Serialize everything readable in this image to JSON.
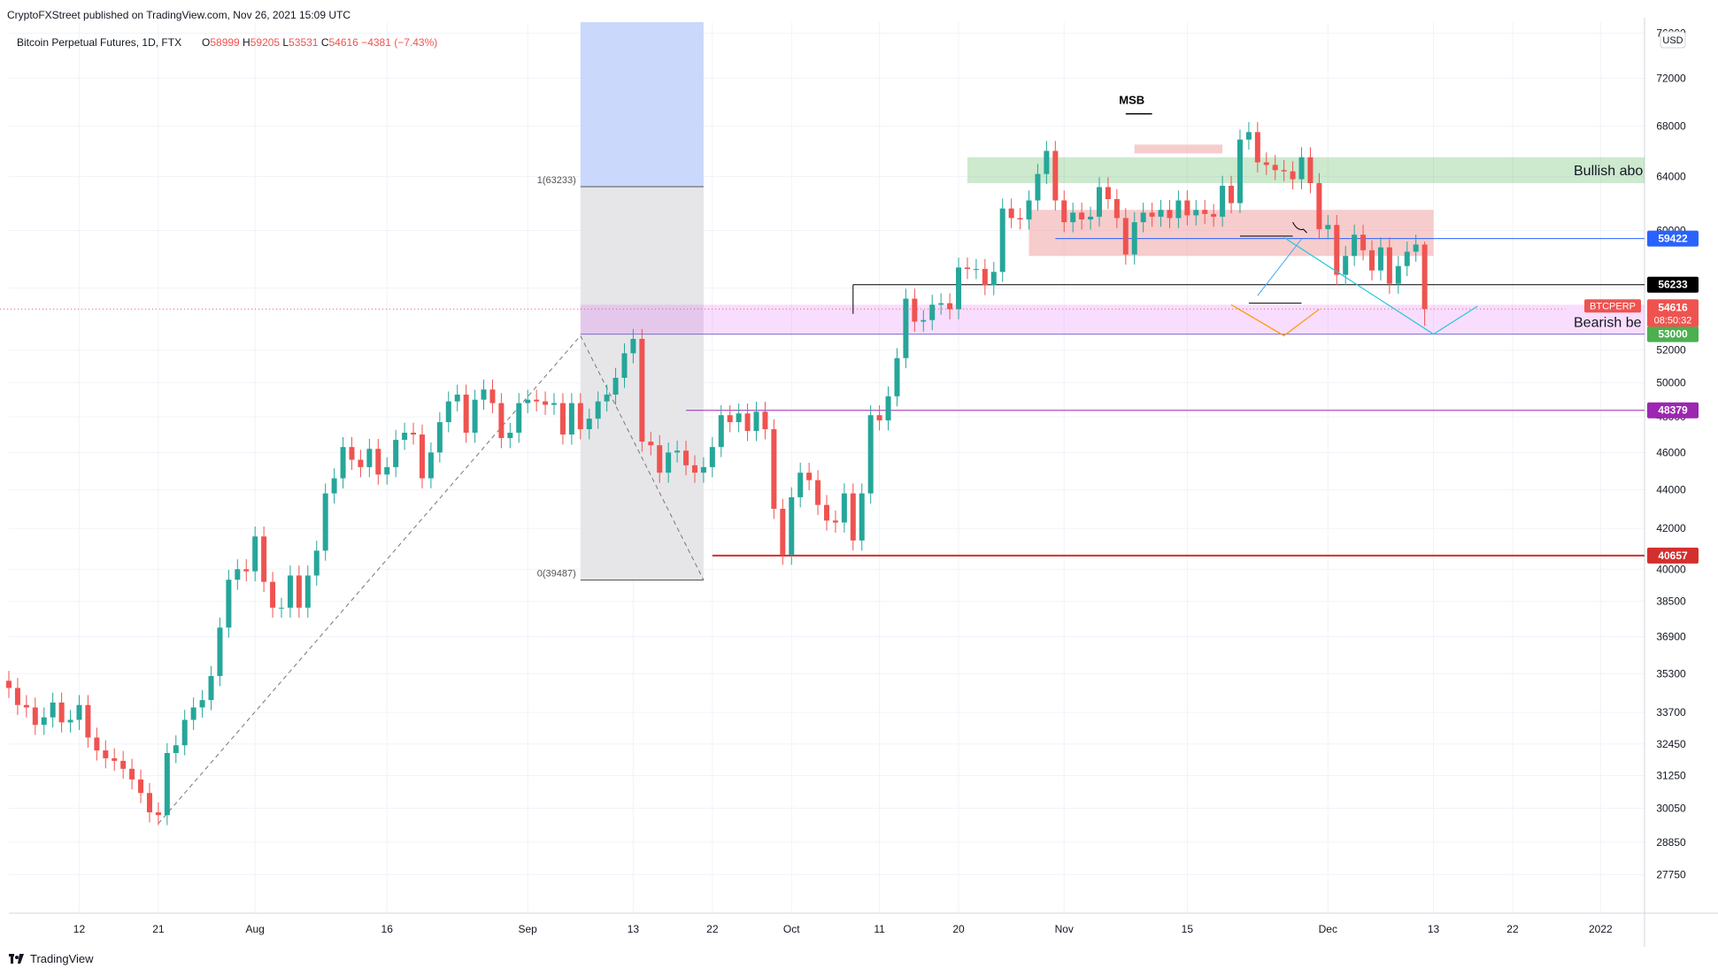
{
  "header": {
    "published": "CryptoFXStreet published on TradingView.com, Nov 26, 2021 15:09 UTC",
    "symbol_line": "Bitcoin Perpetual Futures, 1D, FTX",
    "ohlc": {
      "o_label": "O",
      "o": "58999",
      "h_label": "H",
      "h": "59205",
      "l_label": "L",
      "l": "53531",
      "c_label": "C",
      "c": "54616",
      "change": "−4381 (−7.43%)"
    }
  },
  "footer": {
    "brand": "TradingView"
  },
  "colors": {
    "up": "#26a69a",
    "down": "#ef5350",
    "grid": "#f0f3fa",
    "axis_text": "#131722"
  },
  "chart_data": {
    "type": "candlestick",
    "title": "Bitcoin Perpetual Futures, 1D, FTX",
    "currency": "USD",
    "y_scale": "log",
    "ylim": [
      26500,
      77000
    ],
    "xlim": [
      "2021-07-04",
      "2022-01-06"
    ],
    "y_ticks": [
      "27750",
      "28850",
      "30050",
      "31250",
      "32450",
      "33700",
      "35300",
      "36900",
      "38500",
      "40000",
      "42000",
      "44000",
      "46000",
      "48000",
      "50000",
      "52000",
      "56000",
      "60000",
      "64000",
      "68000",
      "72000",
      "76000"
    ],
    "x_ticks": [
      {
        "date": "2021-07-12",
        "label": "12"
      },
      {
        "date": "2021-07-21",
        "label": "21"
      },
      {
        "date": "2021-08-01",
        "label": "Aug"
      },
      {
        "date": "2021-08-16",
        "label": "16"
      },
      {
        "date": "2021-09-01",
        "label": "Sep"
      },
      {
        "date": "2021-09-13",
        "label": "13"
      },
      {
        "date": "2021-09-22",
        "label": "22"
      },
      {
        "date": "2021-10-01",
        "label": "Oct"
      },
      {
        "date": "2021-10-11",
        "label": "11"
      },
      {
        "date": "2021-10-20",
        "label": "20"
      },
      {
        "date": "2021-11-01",
        "label": "Nov"
      },
      {
        "date": "2021-11-15",
        "label": "15"
      },
      {
        "date": "2021-12-01",
        "label": "Dec"
      },
      {
        "date": "2021-12-13",
        "label": "13"
      },
      {
        "date": "2021-12-22",
        "label": "22"
      },
      {
        "date": "2022-01-01",
        "label": "2022"
      }
    ],
    "first_date": "2021-07-04",
    "closes": [
      34700,
      34000,
      33900,
      33200,
      33500,
      34100,
      33300,
      33400,
      34000,
      32700,
      32200,
      31900,
      31800,
      31500,
      31100,
      30600,
      29900,
      29800,
      32100,
      32400,
      33400,
      33900,
      34200,
      35200,
      37300,
      39500,
      40000,
      39900,
      41600,
      39400,
      38200,
      38200,
      39700,
      38200,
      39700,
      40900,
      43800,
      44600,
      46300,
      45600,
      45200,
      46200,
      44800,
      45200,
      46700,
      47100,
      47000,
      44600,
      46000,
      47700,
      48900,
      49300,
      47100,
      49000,
      49600,
      48800,
      46800,
      47100,
      48800,
      49000,
      48900,
      48700,
      48800,
      47000,
      48800,
      47300,
      47900,
      48900,
      49300,
      50300,
      51800,
      52700,
      46600,
      46400,
      44900,
      46000,
      46100,
      45300,
      44900,
      45200,
      46300,
      48100,
      47700,
      48200,
      47200,
      48300,
      47300,
      43000,
      40700,
      43600,
      44900,
      44500,
      43200,
      42400,
      42300,
      43800,
      41400,
      43800,
      48100,
      47800,
      49200,
      51500,
      55300,
      53800,
      53900,
      54900,
      55000,
      54600,
      57400,
      57300,
      57300,
      56200,
      57100,
      61600,
      60900,
      60800,
      62200,
      64200,
      66000,
      62200,
      60600,
      61300,
      60800,
      61000,
      63200,
      62300,
      60900,
      58300,
      60600,
      61300,
      61000,
      61500,
      60900,
      62200,
      61100,
      61500,
      61200,
      61000,
      63300,
      62000,
      66900,
      67500,
      65100,
      64900,
      64500,
      64400,
      63800,
      65500,
      63500,
      60100,
      60400,
      56900,
      58200,
      59700,
      58600,
      57200,
      58800,
      56300,
      57500,
      58500,
      59000,
      54616
    ],
    "opens": [
      35000,
      34700,
      34000,
      33900,
      33200,
      33500,
      34100,
      33300,
      33400,
      34000,
      32700,
      32200,
      31900,
      31800,
      31500,
      31100,
      30600,
      29900,
      29800,
      32100,
      32400,
      33400,
      33900,
      34200,
      35200,
      37300,
      39500,
      40000,
      39900,
      41600,
      39400,
      38200,
      38200,
      39700,
      38200,
      39700,
      40900,
      43800,
      44600,
      46300,
      45600,
      45200,
      46200,
      44800,
      45200,
      46700,
      47100,
      47000,
      44600,
      46000,
      47700,
      48900,
      49300,
      47100,
      49000,
      49600,
      48800,
      46800,
      47100,
      48800,
      49000,
      48900,
      48700,
      48800,
      47000,
      48800,
      47300,
      47900,
      48900,
      49300,
      50300,
      51800,
      52700,
      46600,
      46400,
      44900,
      46000,
      46100,
      45300,
      44900,
      45200,
      46300,
      48100,
      47700,
      48200,
      47200,
      48300,
      47300,
      43000,
      40700,
      43600,
      44900,
      44500,
      43200,
      42400,
      42300,
      43800,
      41400,
      43800,
      48100,
      47800,
      49200,
      51500,
      55300,
      53800,
      53900,
      54900,
      55000,
      54600,
      57400,
      57300,
      57300,
      56200,
      57100,
      61600,
      60900,
      60800,
      62200,
      64200,
      66000,
      62200,
      60600,
      61300,
      60800,
      61000,
      63200,
      62300,
      60900,
      58300,
      60600,
      61300,
      61000,
      61500,
      60900,
      62200,
      61100,
      61500,
      61200,
      61000,
      63300,
      62000,
      66900,
      67500,
      65100,
      64900,
      64500,
      64400,
      63800,
      65500,
      63500,
      60100,
      60400,
      56900,
      58200,
      59700,
      58600,
      57200,
      58800,
      56300,
      57500,
      58500,
      59000,
      58999
    ],
    "last_bar": {
      "o": 58999,
      "h": 59205,
      "l": 53531,
      "c": 54616
    },
    "series": [
      {
        "name": "BTCPERP"
      }
    ],
    "horizontal_levels": [
      {
        "value": 59422,
        "label": "59422",
        "color": "#2962ff"
      },
      {
        "value": 56233,
        "label": "56233",
        "color": "#000000"
      },
      {
        "value": 53000,
        "label": "53000",
        "color": "#4caf50"
      },
      {
        "value": 48379,
        "label": "48379",
        "color": "#9c27b0"
      },
      {
        "value": 40657,
        "label": "40657",
        "color": "#d32f2f"
      }
    ],
    "price_tag": {
      "symbol": "BTCPERP",
      "value": "54616",
      "countdown": "08:50:32"
    },
    "fib": {
      "top_label": "1(63233)",
      "top_value": 63233,
      "bottom_label": "0(39487)",
      "bottom_value": 39487
    },
    "zones": [
      {
        "label": "Bullish abo",
        "from": 63500,
        "to": 65500,
        "color": "#4caf50"
      },
      {
        "label": "Bearish be",
        "from": 53000,
        "to": 54900,
        "color": "#e040fb"
      }
    ],
    "annotations": [
      {
        "text": "MSB"
      }
    ]
  }
}
